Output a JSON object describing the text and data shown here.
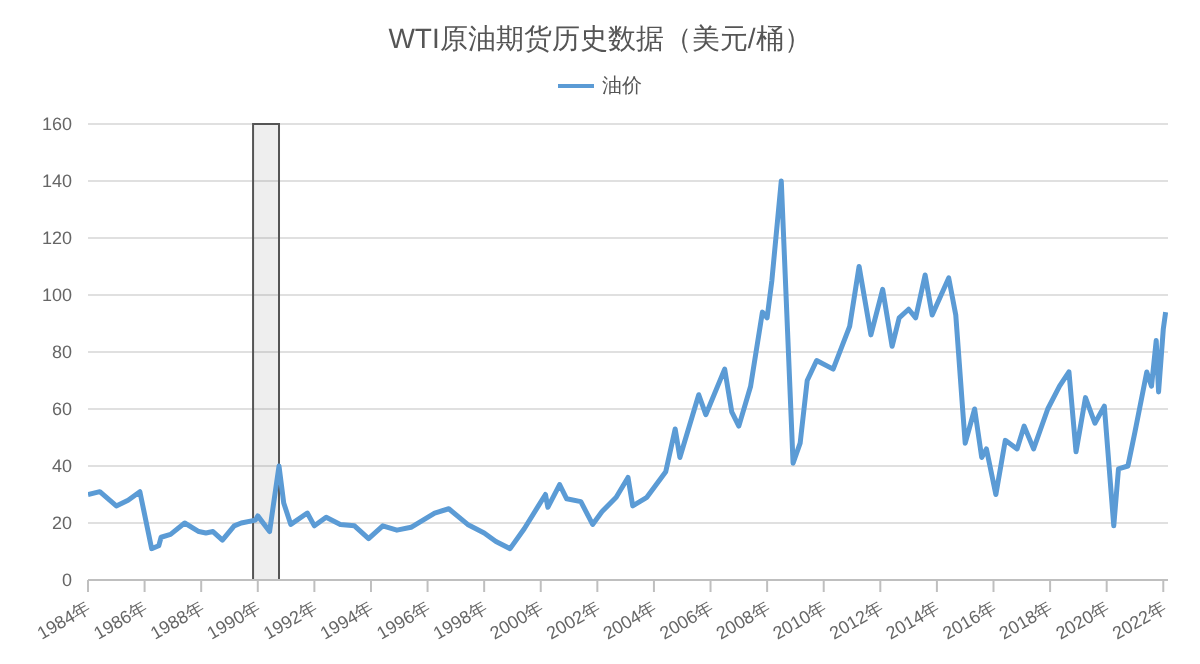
{
  "chart_data": {
    "type": "line",
    "title": "WTI原油期货历史数据（美元/桶）",
    "x": [
      "1984-01",
      "1984-06",
      "1985-01",
      "1985-06",
      "1985-11",
      "1986-04",
      "1986-07",
      "1986-08",
      "1986-12",
      "1987-06",
      "1987-12",
      "1988-03",
      "1988-06",
      "1988-10",
      "1989-03",
      "1989-06",
      "1989-12",
      "1990-01",
      "1990-06",
      "1990-10",
      "1990-12",
      "1991-03",
      "1991-10",
      "1992-01",
      "1992-06",
      "1992-12",
      "1993-06",
      "1993-12",
      "1994-06",
      "1994-12",
      "1995-06",
      "1996-04",
      "1996-10",
      "1997-06",
      "1998-01",
      "1998-06",
      "1998-12",
      "1999-06",
      "1999-12",
      "2000-03",
      "2000-04",
      "2000-09",
      "2000-12",
      "2001-06",
      "2001-11",
      "2002-03",
      "2002-09",
      "2003-02",
      "2003-04",
      "2003-10",
      "2004-06",
      "2004-10",
      "2004-12",
      "2005-08",
      "2005-11",
      "2006-07",
      "2006-10",
      "2007-01",
      "2007-06",
      "2007-11",
      "2008-01",
      "2008-03",
      "2008-07",
      "2008-12",
      "2009-03",
      "2009-06",
      "2009-10",
      "2010-05",
      "2010-12",
      "2011-04",
      "2011-09",
      "2012-02",
      "2012-06",
      "2012-09",
      "2013-01",
      "2013-04",
      "2013-08",
      "2013-11",
      "2014-06",
      "2014-09",
      "2014-12",
      "2015-01",
      "2015-05",
      "2015-08",
      "2015-10",
      "2016-02",
      "2016-06",
      "2016-11",
      "2017-02",
      "2017-06",
      "2017-12",
      "2018-05",
      "2018-09",
      "2018-12",
      "2019-04",
      "2019-08",
      "2019-12",
      "2020-04",
      "2020-06",
      "2020-10",
      "2021-01",
      "2021-06",
      "2021-08",
      "2021-10",
      "2021-11",
      "2022-01",
      "2022-02"
    ],
    "series": [
      {
        "name": "油价",
        "color": "#5b9bd5",
        "values": [
          30,
          31,
          26,
          28,
          31,
          11,
          12,
          15,
          16,
          20,
          17,
          16.5,
          17,
          14,
          19,
          20,
          21,
          22.5,
          17,
          40,
          27,
          19.5,
          23.5,
          19,
          22,
          19.5,
          19,
          14.5,
          19,
          17.5,
          18.5,
          23.5,
          25,
          19.5,
          16.5,
          13.5,
          11,
          18,
          26,
          30,
          25.5,
          33.5,
          28.5,
          27.5,
          19.5,
          24,
          29,
          36,
          26,
          29,
          38,
          53,
          43,
          65,
          58,
          74,
          59,
          54,
          68,
          94,
          92,
          105,
          140,
          41,
          48,
          70,
          77,
          74,
          89,
          110,
          86,
          102,
          82,
          92,
          95,
          92,
          107,
          93,
          106,
          93,
          59,
          48,
          60,
          43,
          46,
          30,
          49,
          46,
          54,
          46,
          60,
          68,
          73,
          45,
          64,
          55,
          61,
          19,
          39,
          40,
          52,
          73,
          68,
          84,
          66,
          88,
          94
        ]
      }
    ],
    "xlim": [
      "1984-01",
      "2022-03"
    ],
    "xticks": [
      {
        "value": "1984",
        "label": "1984年"
      },
      {
        "value": "1986",
        "label": "1986年"
      },
      {
        "value": "1988",
        "label": "1988年"
      },
      {
        "value": "1990",
        "label": "1990年"
      },
      {
        "value": "1992",
        "label": "1992年"
      },
      {
        "value": "1994",
        "label": "1994年"
      },
      {
        "value": "1996",
        "label": "1996年"
      },
      {
        "value": "1998",
        "label": "1998年"
      },
      {
        "value": "2000",
        "label": "2000年"
      },
      {
        "value": "2002",
        "label": "2002年"
      },
      {
        "value": "2004",
        "label": "2004年"
      },
      {
        "value": "2006",
        "label": "2006年"
      },
      {
        "value": "2008",
        "label": "2008年"
      },
      {
        "value": "2010",
        "label": "2010年"
      },
      {
        "value": "2012",
        "label": "2012年"
      },
      {
        "value": "2014",
        "label": "2014年"
      },
      {
        "value": "2016",
        "label": "2016年"
      },
      {
        "value": "2018",
        "label": "2018年"
      },
      {
        "value": "2020",
        "label": "2020年"
      },
      {
        "value": "2022",
        "label": "2022年"
      }
    ],
    "ylim": [
      0,
      160
    ],
    "yticks": [
      0,
      20,
      40,
      60,
      80,
      100,
      120,
      140,
      160
    ],
    "bands": [
      {
        "axis": "x",
        "from": "1989-11",
        "to": "1990-10",
        "color": "#555555"
      }
    ],
    "grid": "y",
    "legend": "top",
    "marker": "none",
    "line_style": "solid"
  }
}
